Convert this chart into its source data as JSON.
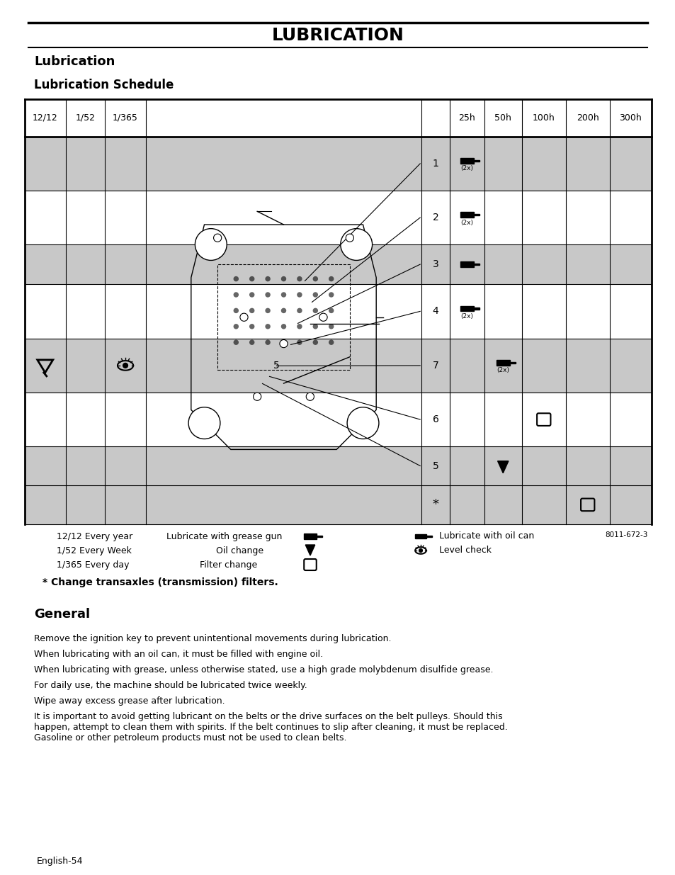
{
  "page_title": "LUBRICATION",
  "section_title": "Lubrication",
  "subsection_title": "Lubrication Schedule",
  "image_ref": "8011-672-3",
  "star_note": "* Change transaxles (transmission) filters.",
  "general_title": "General",
  "paragraphs": [
    "Remove the ignition key to prevent unintentional movements during lubrication.",
    "When lubricating with an oil can, it must be filled with engine oil.",
    "When lubricating with grease, unless otherwise stated, use a high grade molybdenum disulfide grease.",
    "For daily use, the machine should be lubricated twice weekly.",
    "Wipe away excess grease after lubrication.",
    "It is important to avoid getting lubricant on the belts or the drive surfaces on the belt pulleys. Should this\nhappen, attempt to clean them with spirits. If the belt continues to slip after cleaning, it must be replaced.\nGasoline or other petroleum products must not be used to clean belts."
  ],
  "footer": "English-54",
  "bg_color": "#ffffff"
}
